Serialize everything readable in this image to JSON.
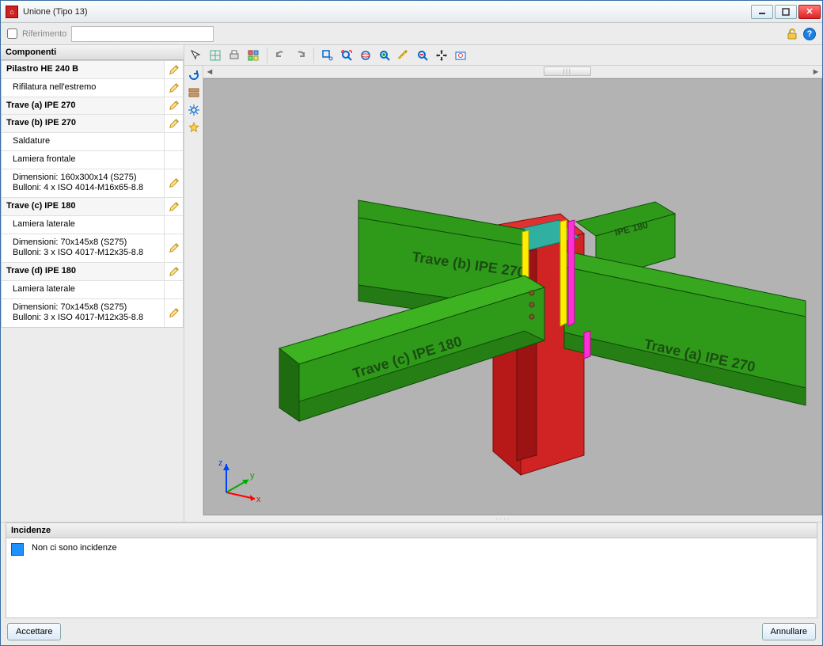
{
  "window": {
    "title": "Unione (Tipo 13)"
  },
  "ref": {
    "label": "Riferimento"
  },
  "sidebar": {
    "header": "Componenti",
    "rows": [
      {
        "label": "Pilastro HE 240 B",
        "bold": true,
        "edit": true
      },
      {
        "label": "Rifilatura nell'estremo",
        "sub": true,
        "edit": true
      },
      {
        "label": "Trave (a) IPE 270",
        "bold": true,
        "edit": true
      },
      {
        "label": "Trave (b) IPE 270",
        "bold": true,
        "edit": true
      },
      {
        "label": "Saldature",
        "sub": true,
        "edit": false
      },
      {
        "label": "Lamiera frontale",
        "sub": true,
        "edit": false
      },
      {
        "label": "Dimensioni: 160x300x14 (S275)\nBulloni: 4 x ISO 4014-M16x65-8.8",
        "sub": true,
        "edit": true
      },
      {
        "label": "Trave (c) IPE 180",
        "bold": true,
        "edit": true
      },
      {
        "label": "Lamiera laterale",
        "sub": true,
        "edit": false
      },
      {
        "label": "Dimensioni: 70x145x8 (S275)\nBulloni: 3 x ISO 4017-M12x35-8.8",
        "sub": true,
        "edit": true
      },
      {
        "label": "Trave (d) IPE 180",
        "bold": true,
        "edit": true
      },
      {
        "label": "Lamiera laterale",
        "sub": true,
        "edit": false
      },
      {
        "label": "Dimensioni: 70x145x8 (S275)\nBulloni: 3 x ISO 4017-M12x35-8.8",
        "sub": true,
        "edit": true
      }
    ]
  },
  "incidenze": {
    "header": "Incidenze",
    "msg": "Non ci sono incidenze"
  },
  "buttons": {
    "accept": "Accettare",
    "cancel": "Annullare"
  },
  "viewport": {
    "background": "#b3b3b3",
    "beams": {
      "a": {
        "label": "Trave (a) IPE 270",
        "color": "#36a21c"
      },
      "b": {
        "label": "Trave (b) IPE 270",
        "color": "#36a21c"
      },
      "c": {
        "label": "Trave (c) IPE 180",
        "color": "#36a21c"
      },
      "d": {
        "label": "Trave (d) IPE 180",
        "color": "#36a21c"
      }
    },
    "column_color": "#c91919",
    "plate_color": "#2fb0a0",
    "highlight_colors": [
      "#ffee00",
      "#ff2fd6"
    ],
    "axis": {
      "x": "#ff0000",
      "y": "#00aa00",
      "z": "#0040ff"
    }
  },
  "hscroll_thumb": "|||"
}
